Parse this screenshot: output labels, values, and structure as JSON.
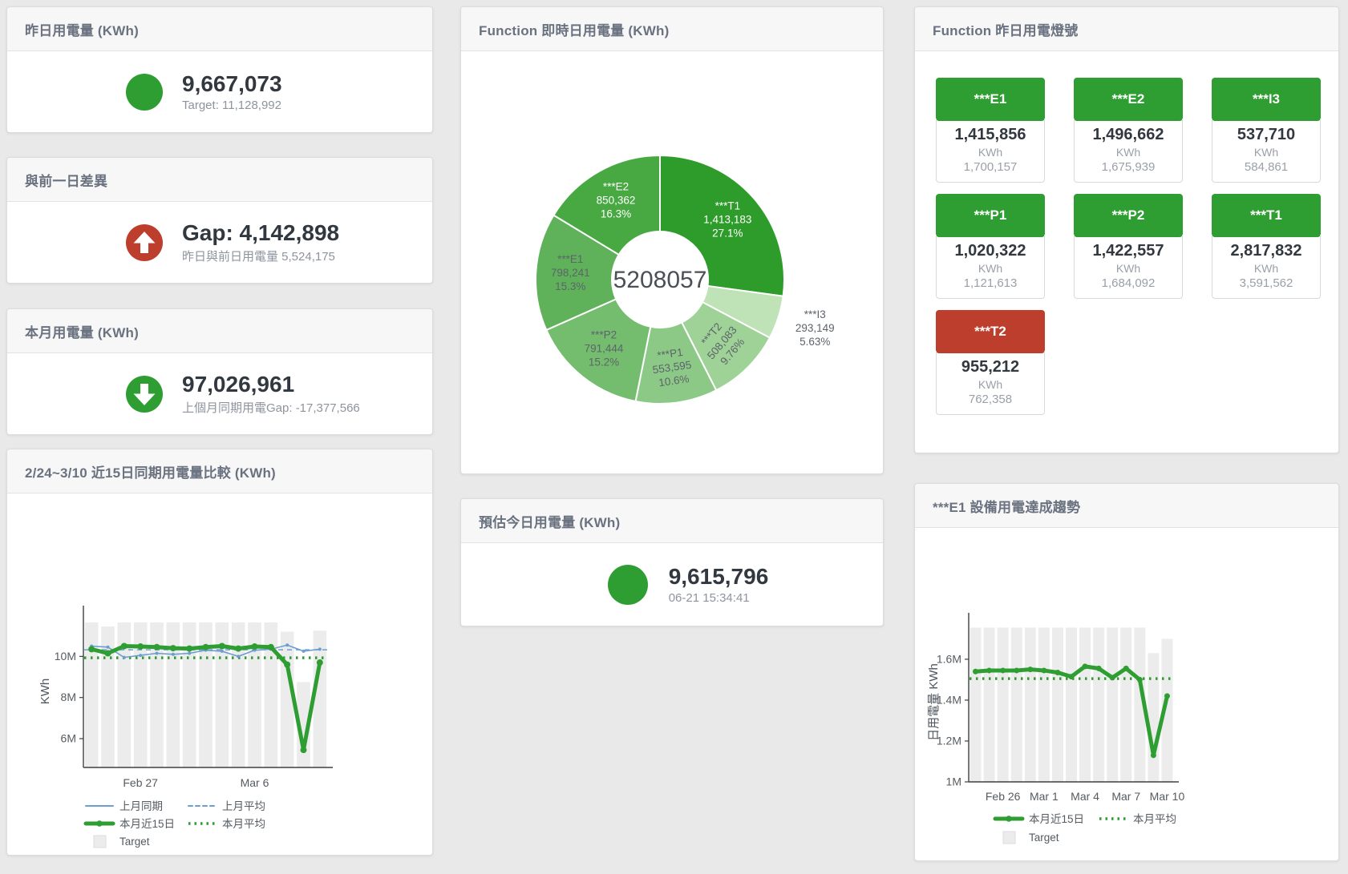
{
  "colors": {
    "green": "#2f9e32",
    "red": "#bd3e2c",
    "blue_line": "#6d9dd1",
    "bar_gray": "#ececec",
    "value_text": "#32383f",
    "sub_text": "#8e949e",
    "title_text": "#6a7280"
  },
  "panels": {
    "yesterday": {
      "title": "昨日用電量 (KWh)",
      "value": "9,667,073",
      "subtext": "Target: 11,128,992",
      "status": "green"
    },
    "gap": {
      "title": "與前一日差異",
      "value": "Gap: 4,142,898",
      "subtext": "昨日與前日用電量 5,524,175",
      "status": "red",
      "direction": "up"
    },
    "month": {
      "title": "本月用電量 (KWh)",
      "value": "97,026,961",
      "subtext": "上個月同期用電Gap: -17,377,566",
      "status": "green",
      "direction": "down"
    },
    "compare": {
      "title": "2/24~3/10 近15日同期用電量比較 (KWh)"
    },
    "realtime": {
      "title": "Function 即時日用電量 (KWh)",
      "center_value": "5208057"
    },
    "estimate": {
      "title": "預估今日用電量 (KWh)",
      "value": "9,615,796",
      "subtext": "06-21 15:34:41",
      "status": "green"
    },
    "lights": {
      "title": "Function 昨日用電燈號",
      "cards": [
        {
          "label": "***E1",
          "value": "1,415,856",
          "unit": "KWh",
          "target": "1,700,157",
          "status": "green"
        },
        {
          "label": "***E2",
          "value": "1,496,662",
          "unit": "KWh",
          "target": "1,675,939",
          "status": "green"
        },
        {
          "label": "***I3",
          "value": "537,710",
          "unit": "KWh",
          "target": "584,861",
          "status": "green"
        },
        {
          "label": "***P1",
          "value": "1,020,322",
          "unit": "KWh",
          "target": "1,121,613",
          "status": "green"
        },
        {
          "label": "***P2",
          "value": "1,422,557",
          "unit": "KWh",
          "target": "1,684,092",
          "status": "green"
        },
        {
          "label": "***T1",
          "value": "2,817,832",
          "unit": "KWh",
          "target": "3,591,562",
          "status": "green"
        },
        {
          "label": "***T2",
          "value": "955,212",
          "unit": "KWh",
          "target": "762,358",
          "status": "red"
        }
      ]
    },
    "e1trend": {
      "title": "***E1 設備用電達成趨勢"
    }
  },
  "chart_data": [
    {
      "id": "daily_pie",
      "type": "pie",
      "title": "Function 即時日用電量 (KWh)",
      "center_label": "5208057",
      "legend_position": "none",
      "slices": [
        {
          "name": "***T1",
          "value": 1413183,
          "display": "1,413,183",
          "pct": "27.1%",
          "color": "#2e9c2a",
          "text": "#ffffff"
        },
        {
          "name": "***I3",
          "value": 293149,
          "display": "293,149",
          "pct": "5.63%",
          "color": "#bfe2b6",
          "text": "#5d646b",
          "outside": true
        },
        {
          "name": "***T2",
          "value": 508083,
          "display": "508,083",
          "pct": "9.76%",
          "color": "#9ed297",
          "text": "#5d646b",
          "label_rotate": -50
        },
        {
          "name": "***P1",
          "value": 553595,
          "display": "553,595",
          "pct": "10.6%",
          "color": "#8cc986",
          "text": "#5d646b",
          "label_rotate": -8
        },
        {
          "name": "***P2",
          "value": 791444,
          "display": "791,444",
          "pct": "15.2%",
          "color": "#74bd6e",
          "text": "#5d646b"
        },
        {
          "name": "***E1",
          "value": 798241,
          "display": "798,241",
          "pct": "15.3%",
          "color": "#5fb15a",
          "text": "#5d646b"
        },
        {
          "name": "***E2",
          "value": 850362,
          "display": "850,362",
          "pct": "16.3%",
          "color": "#48a943",
          "text": "#ffffff"
        }
      ]
    },
    {
      "id": "compare15",
      "type": "line+bar",
      "title": "2/24~3/10 近15日同期用電量比較 (KWh)",
      "xlabel": "",
      "ylabel": "KWh",
      "unit": "M",
      "ylim": [
        4.6,
        12.0
      ],
      "grid": false,
      "legend_position": "bottom-left",
      "yticks": [
        {
          "v": 6,
          "label": "6M"
        },
        {
          "v": 8,
          "label": "8M"
        },
        {
          "v": 10,
          "label": "10M"
        }
      ],
      "xticks": [
        {
          "i": 3,
          "label": "Feb 27"
        },
        {
          "i": 10,
          "label": "Mar 6"
        }
      ],
      "bars": {
        "name": "Target",
        "color": "#ececec",
        "values": [
          11.65,
          11.45,
          11.65,
          11.65,
          11.65,
          11.65,
          11.65,
          11.65,
          11.65,
          11.65,
          11.65,
          11.65,
          11.2,
          8.75,
          11.25
        ]
      },
      "series": [
        {
          "name": "上月同期",
          "color": "#6d9dd1",
          "width": 1.6,
          "marker": 2,
          "values": [
            10.5,
            10.45,
            9.95,
            10.05,
            10.15,
            10.1,
            10.15,
            10.3,
            10.25,
            10.0,
            10.3,
            10.35,
            10.55,
            10.25,
            10.35
          ]
        },
        {
          "name": "上月平均",
          "color": "#6d9dd1",
          "width": 1.6,
          "dash": "6 5",
          "avg": 10.32
        },
        {
          "name": "本月近15日",
          "color": "#2f9e32",
          "width": 5,
          "marker": 4,
          "values": [
            10.35,
            10.15,
            10.5,
            10.48,
            10.45,
            10.4,
            10.38,
            10.45,
            10.5,
            10.38,
            10.48,
            10.45,
            9.6,
            5.45,
            9.7
          ]
        },
        {
          "name": "本月平均",
          "color": "#2f9e32",
          "width": 3.5,
          "dash": "2.5 5.5",
          "avg": 9.93
        }
      ],
      "legend_rows": [
        [
          {
            "type": "line",
            "color": "#6d9dd1",
            "label": "上月同期"
          },
          {
            "type": "dash",
            "color": "#6d9dd1",
            "label": "上月平均"
          }
        ],
        [
          {
            "type": "thick",
            "color": "#2f9e32",
            "label": "本月近15日"
          },
          {
            "type": "dots",
            "color": "#2f9e32",
            "label": "本月平均"
          }
        ],
        [
          {
            "type": "square",
            "color": "#ececec",
            "label": "Target"
          }
        ]
      ]
    },
    {
      "id": "e1trend",
      "type": "line+bar",
      "title": "***E1 設備用電達成趨勢",
      "xlabel": "",
      "ylabel": "日用電量 KWh",
      "unit": "M",
      "ylim": [
        1.0,
        1.78
      ],
      "grid": false,
      "legend_position": "bottom-left",
      "yticks": [
        {
          "v": 1.0,
          "label": "1M"
        },
        {
          "v": 1.2,
          "label": "1.2M"
        },
        {
          "v": 1.4,
          "label": "1.4M"
        },
        {
          "v": 1.6,
          "label": "1.6M"
        }
      ],
      "xticks": [
        {
          "i": 2,
          "label": "Feb 26"
        },
        {
          "i": 5,
          "label": "Mar 1"
        },
        {
          "i": 8,
          "label": "Mar 4"
        },
        {
          "i": 11,
          "label": "Mar 7"
        },
        {
          "i": 14,
          "label": "Mar 10"
        }
      ],
      "bars": {
        "name": "Target",
        "color": "#ececec",
        "values": [
          1.755,
          1.755,
          1.755,
          1.755,
          1.755,
          1.755,
          1.755,
          1.755,
          1.755,
          1.755,
          1.755,
          1.755,
          1.755,
          1.63,
          1.7
        ]
      },
      "series": [
        {
          "name": "本月近15日",
          "color": "#2f9e32",
          "width": 5,
          "marker": 3.5,
          "values": [
            1.54,
            1.545,
            1.545,
            1.545,
            1.55,
            1.545,
            1.535,
            1.515,
            1.565,
            1.555,
            1.51,
            1.555,
            1.5,
            1.13,
            1.42
          ]
        },
        {
          "name": "本月平均",
          "color": "#2f9e32",
          "width": 3.5,
          "dash": "2.5 5.5",
          "avg": 1.505
        }
      ],
      "legend_rows": [
        [
          {
            "type": "thick",
            "color": "#2f9e32",
            "label": "本月近15日"
          },
          {
            "type": "dots",
            "color": "#2f9e32",
            "label": "本月平均"
          }
        ],
        [
          {
            "type": "square",
            "color": "#ececec",
            "label": "Target"
          }
        ]
      ]
    }
  ]
}
